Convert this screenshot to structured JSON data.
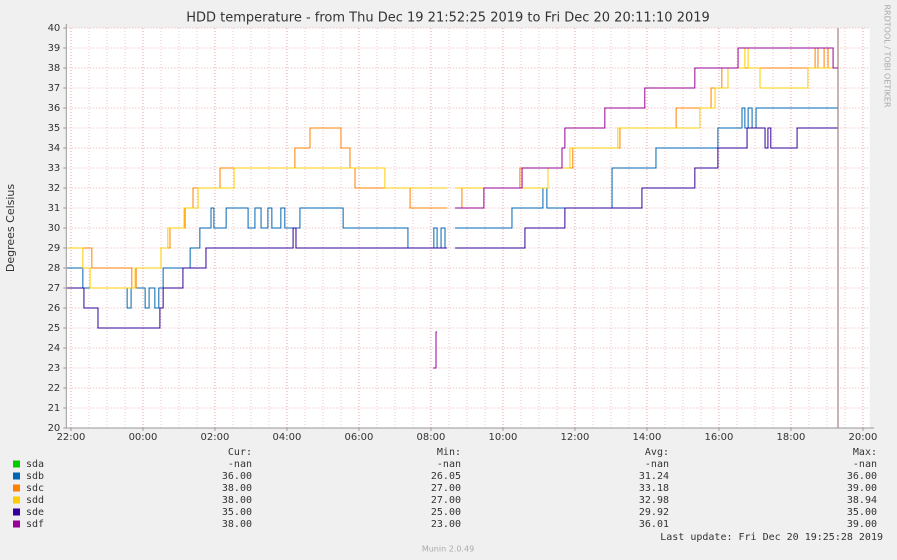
{
  "chart_data": {
    "type": "step",
    "title": "HDD temperature - from Thu Dec 19 21:52:25 2019 to Fri Dec 20 20:11:10 2019",
    "y_label": "Degrees Celsius",
    "watermark": "RRDTOOL / TOBI OETIKER",
    "credit": "Munin 2.0.49",
    "last_update": "Last update:  Fri Dec 20 19:25:28 2019",
    "stat_labels": [
      "Cur:",
      "Min:",
      "Avg:",
      "Max:"
    ],
    "xlim": [
      21.87,
      44.19
    ],
    "xticks": [
      {
        "value": 22,
        "label": "22:00"
      },
      {
        "value": 24,
        "label": "00:00"
      },
      {
        "value": 26,
        "label": "02:00"
      },
      {
        "value": 28,
        "label": "04:00"
      },
      {
        "value": 30,
        "label": "06:00"
      },
      {
        "value": 32,
        "label": "08:00"
      },
      {
        "value": 34,
        "label": "10:00"
      },
      {
        "value": 36,
        "label": "12:00"
      },
      {
        "value": 38,
        "label": "14:00"
      },
      {
        "value": 40,
        "label": "16:00"
      },
      {
        "value": 42,
        "label": "18:00"
      },
      {
        "value": 44,
        "label": "20:00"
      }
    ],
    "ylim": [
      20,
      40
    ],
    "yticks": [
      20,
      21,
      22,
      23,
      24,
      25,
      26,
      27,
      28,
      29,
      30,
      31,
      32,
      33,
      34,
      35,
      36,
      37,
      38,
      39,
      40
    ],
    "grid": true,
    "series": [
      {
        "name": "sda",
        "color": "#00cc00",
        "x": [],
        "values": [],
        "stats": [
          "-nan",
          "-nan",
          "-nan",
          "-nan"
        ]
      },
      {
        "name": "sdb",
        "color": "#0066b3",
        "x": [
          21.89,
          22.33,
          23.56,
          23.67,
          24.06,
          24.17,
          24.33,
          24.44,
          24.56,
          25.31,
          25.58,
          25.89,
          25.97,
          26.31,
          26.92,
          27.11,
          27.28,
          27.47,
          27.58,
          27.83,
          27.94,
          28.36,
          29.56,
          31.36,
          32.08,
          32.17,
          32.28,
          32.39,
          32.44,
          32.67,
          34.25,
          35.11,
          35.22,
          37.03,
          38.25,
          39.97,
          40.64,
          40.72,
          40.81,
          40.92,
          41.03,
          43.31
        ],
        "values": [
          28,
          27,
          26,
          27,
          26,
          27,
          26,
          27,
          28,
          29,
          30,
          31,
          30,
          31,
          30,
          31,
          30,
          31,
          30,
          31,
          30,
          31,
          30,
          29,
          30,
          29,
          30,
          29,
          null,
          30,
          31,
          32,
          31,
          33,
          34,
          35,
          36,
          35,
          36,
          35,
          36,
          36
        ],
        "stats": [
          "36.00",
          "26.05",
          "31.24",
          "36.00"
        ]
      },
      {
        "name": "sdc",
        "color": "#ff8000",
        "x": [
          21.89,
          22.58,
          23.69,
          23.81,
          24.5,
          24.75,
          25.17,
          25.39,
          26.14,
          28.22,
          28.64,
          29.5,
          29.75,
          29.89,
          31.42,
          32.44,
          32.67,
          32.86,
          34.47,
          35.94,
          37.25,
          38.81,
          39.78,
          40.08,
          42.67,
          42.75,
          42.92,
          43.03,
          43.31
        ],
        "values": [
          29,
          28,
          27,
          28,
          29,
          30,
          31,
          32,
          33,
          34,
          35,
          34,
          33,
          32,
          31,
          null,
          31,
          32,
          33,
          34,
          35,
          36,
          37,
          38,
          39,
          38,
          39,
          38,
          38
        ],
        "stats": [
          "38.00",
          "27.00",
          "33.18",
          "39.00"
        ]
      },
      {
        "name": "sdd",
        "color": "#ffcc00",
        "x": [
          21.89,
          22.33,
          22.53,
          23.78,
          24.5,
          24.69,
          25.14,
          25.53,
          26.53,
          30.72,
          32.44,
          32.67,
          35.25,
          35.86,
          37.19,
          39.47,
          39.89,
          40.25,
          40.72,
          40.81,
          41.14,
          42.47,
          43.31
        ],
        "values": [
          29,
          28,
          27,
          28,
          29,
          30,
          31,
          32,
          33,
          32,
          null,
          32,
          33,
          34,
          35,
          36,
          37,
          38,
          39,
          38,
          37,
          38,
          38
        ],
        "stats": [
          "38.00",
          "27.00",
          "32.98",
          "38.94"
        ]
      },
      {
        "name": "sde",
        "color": "#330099",
        "x": [
          21.89,
          22.36,
          22.75,
          24.47,
          24.56,
          25.11,
          25.75,
          28.17,
          28.25,
          32.44,
          32.67,
          34.61,
          35.72,
          37.86,
          39.33,
          39.97,
          40.78,
          41.28,
          41.36,
          41.44,
          42.17,
          43.31
        ],
        "values": [
          27,
          26,
          25,
          26,
          27,
          28,
          29,
          30,
          29,
          null,
          29,
          30,
          31,
          32,
          33,
          34,
          35,
          34,
          35,
          34,
          35,
          35
        ],
        "stats": [
          "35.00",
          "25.00",
          "29.92",
          "35.00"
        ]
      },
      {
        "name": "sdf",
        "color": "#990099",
        "x": [
          32.06,
          32.14,
          32.17,
          32.67,
          33.47,
          34.53,
          35.64,
          35.72,
          36.83,
          37.94,
          39.33,
          40.53,
          43.17,
          43.31
        ],
        "values": [
          23,
          24.8,
          null,
          31,
          32,
          33,
          34,
          35,
          36,
          37,
          38,
          39,
          38,
          38
        ],
        "stats": [
          "38.00",
          "23.00",
          "36.01",
          "39.00"
        ]
      }
    ]
  }
}
